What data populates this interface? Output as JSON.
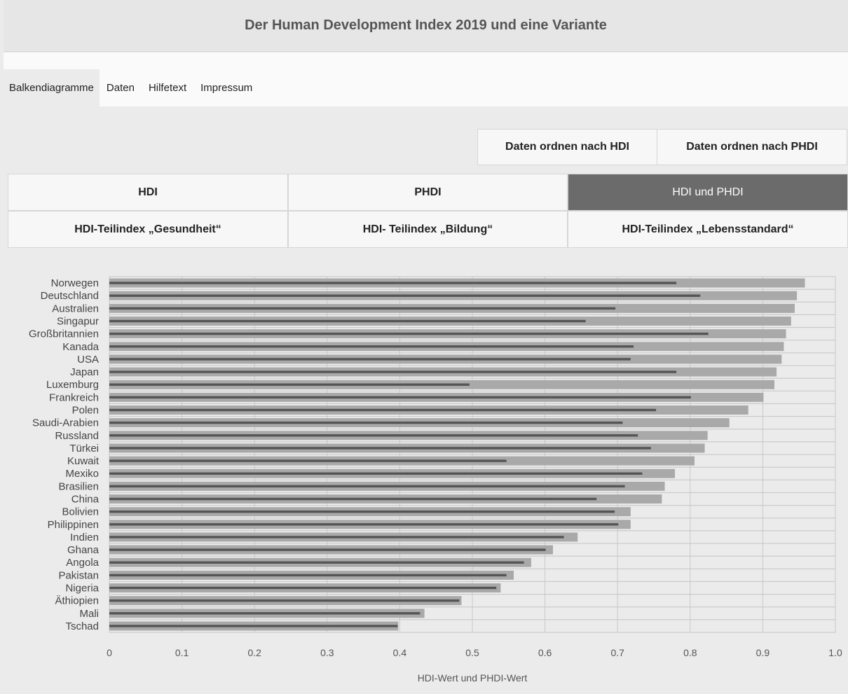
{
  "header": {
    "title": "Der Human Development Index 2019 und eine Variante"
  },
  "nav": {
    "tabs": [
      {
        "label": "Balkendiagramme",
        "active": true
      },
      {
        "label": "Daten"
      },
      {
        "label": "Hilfetext"
      },
      {
        "label": "Impressum"
      }
    ]
  },
  "order_buttons": {
    "by_hdi": "Daten ordnen nach HDI",
    "by_phdi": "Daten ordnen nach PHDI"
  },
  "index_buttons": {
    "hdi": "HDI",
    "phdi": "PHDI",
    "hdi_phdi": "HDI und PHDI",
    "health": "HDI-Teilindex „Gesundheit“",
    "education": "HDI- Teilindex „Bildung“",
    "living": "HDI-Teilindex „Lebensstandard“"
  },
  "colors": {
    "hdi_bar": "#a9a9a9",
    "phdi_bar": "#555555",
    "active_button": "#6b6b6b"
  },
  "chart_data": {
    "type": "bar",
    "orientation": "horizontal",
    "xlabel": "HDI-Wert und PHDI-Wert",
    "xlim": [
      0,
      1.0
    ],
    "xticks": [
      "0",
      "0.1",
      "0.2",
      "0.3",
      "0.4",
      "0.5",
      "0.6",
      "0.7",
      "0.8",
      "0.9",
      "1.0"
    ],
    "grid": true,
    "categories": [
      "Norwegen",
      "Deutschland",
      "Australien",
      "Singapur",
      "Großbritannien",
      "Kanada",
      "USA",
      "Japan",
      "Luxemburg",
      "Frankreich",
      "Polen",
      "Saudi-Arabien",
      "Russland",
      "Türkei",
      "Kuwait",
      "Mexiko",
      "Brasilien",
      "China",
      "Bolivien",
      "Philippinen",
      "Indien",
      "Ghana",
      "Angola",
      "Pakistan",
      "Nigeria",
      "Äthiopien",
      "Mali",
      "Tschad"
    ],
    "series": [
      {
        "values": [
          0.958,
          0.947,
          0.944,
          0.939,
          0.932,
          0.929,
          0.926,
          0.919,
          0.916,
          0.901,
          0.88,
          0.854,
          0.824,
          0.82,
          0.806,
          0.779,
          0.765,
          0.761,
          0.718,
          0.718,
          0.645,
          0.611,
          0.581,
          0.557,
          0.539,
          0.485,
          0.434,
          0.398
        ]
      },
      {
        "values": [
          0.781,
          0.814,
          0.697,
          0.656,
          0.825,
          0.722,
          0.718,
          0.781,
          0.496,
          0.801,
          0.753,
          0.707,
          0.728,
          0.746,
          0.547,
          0.734,
          0.71,
          0.671,
          0.696,
          0.701,
          0.626,
          0.601,
          0.571,
          0.547,
          0.533,
          0.482,
          0.428,
          0.397
        ]
      }
    ]
  }
}
